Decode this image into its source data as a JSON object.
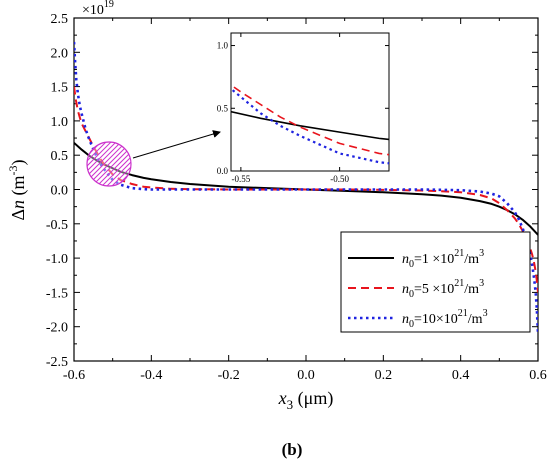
{
  "chart_data": {
    "type": "line",
    "panel_label": "(b)",
    "xlabel": {
      "symbol": "x",
      "sub": "3",
      "unit": " (μm)"
    },
    "ylabel": {
      "symbol": "Δ",
      "italic": "n",
      "unit": " (m",
      "unit_exp": "-3",
      "unit_close": ")"
    },
    "multiplier": {
      "base": "×10",
      "exp": "19"
    },
    "xlim": [
      -0.6,
      0.6
    ],
    "ylim": [
      -2.5,
      2.5
    ],
    "xticks": [
      -0.6,
      -0.4,
      -0.2,
      0.0,
      0.2,
      0.4,
      0.6
    ],
    "xtick_labels": [
      "-0.6",
      "-0.4",
      "-0.2",
      "0.0",
      "0.2",
      "0.4",
      "0.6"
    ],
    "yticks": [
      -2.5,
      -2.0,
      -1.5,
      -1.0,
      -0.5,
      0.0,
      0.5,
      1.0,
      1.5,
      2.0,
      2.5
    ],
    "ytick_labels": [
      "-2.5",
      "-2.0",
      "-1.5",
      "-1.0",
      "-0.5",
      "0.0",
      "0.5",
      "1.0",
      "1.5",
      "2.0",
      "2.5"
    ],
    "legend_position": "right",
    "series": [
      {
        "name": "n0=1 ×10^21/m^3",
        "legend": {
          "n": "n",
          "sub": "0",
          "pre": "=1  ×10",
          "exp": "21",
          "post": "/m",
          "post_exp": "3"
        },
        "color": "#000000",
        "dash": "none",
        "x": [
          -0.6,
          -0.58,
          -0.56,
          -0.54,
          -0.52,
          -0.5,
          -0.48,
          -0.45,
          -0.42,
          -0.4,
          -0.35,
          -0.3,
          -0.25,
          -0.2,
          -0.1,
          0.0,
          0.1,
          0.2,
          0.3,
          0.35,
          0.4,
          0.45,
          0.48,
          0.5,
          0.52,
          0.54,
          0.56,
          0.58,
          0.6
        ],
        "y": [
          0.68,
          0.58,
          0.49,
          0.42,
          0.36,
          0.31,
          0.26,
          0.21,
          0.17,
          0.15,
          0.11,
          0.08,
          0.06,
          0.04,
          0.02,
          0.0,
          -0.02,
          -0.04,
          -0.07,
          -0.09,
          -0.12,
          -0.17,
          -0.21,
          -0.25,
          -0.3,
          -0.36,
          -0.44,
          -0.54,
          -0.66
        ]
      },
      {
        "name": "n0=5 ×10^21/m^3",
        "legend": {
          "n": "n",
          "sub": "0",
          "pre": "=5  ×10",
          "exp": "21",
          "post": "/m",
          "post_exp": "3"
        },
        "color": "#e8141d",
        "dash": "8 5",
        "x": [
          -0.6,
          -0.595,
          -0.59,
          -0.585,
          -0.58,
          -0.57,
          -0.56,
          -0.55,
          -0.54,
          -0.53,
          -0.52,
          -0.5,
          -0.48,
          -0.45,
          -0.42,
          -0.4,
          -0.35,
          -0.3,
          -0.2,
          -0.1,
          0.0,
          0.1,
          0.2,
          0.3,
          0.35,
          0.4,
          0.45,
          0.48,
          0.5,
          0.52,
          0.54,
          0.55,
          0.56,
          0.57,
          0.58,
          0.585,
          0.59,
          0.595,
          0.6
        ],
        "y": [
          1.5,
          1.3,
          1.15,
          1.05,
          0.96,
          0.85,
          0.74,
          0.63,
          0.53,
          0.43,
          0.35,
          0.22,
          0.14,
          0.08,
          0.04,
          0.03,
          0.01,
          0.005,
          0.0,
          0.0,
          0.0,
          0.0,
          -0.005,
          -0.015,
          -0.025,
          -0.04,
          -0.08,
          -0.13,
          -0.2,
          -0.3,
          -0.42,
          -0.5,
          -0.6,
          -0.72,
          -0.86,
          -0.95,
          -1.07,
          -1.23,
          -1.5
        ]
      },
      {
        "name": "n0=10×10^21/m^3",
        "legend": {
          "n": "n",
          "sub": "0",
          "pre": "=10×10",
          "exp": "21",
          "post": "/m",
          "post_exp": "3"
        },
        "color": "#1f23e0",
        "dash": "2.5 3.5",
        "x": [
          -0.6,
          -0.597,
          -0.594,
          -0.59,
          -0.585,
          -0.58,
          -0.575,
          -0.57,
          -0.56,
          -0.55,
          -0.54,
          -0.53,
          -0.52,
          -0.5,
          -0.48,
          -0.45,
          -0.42,
          -0.4,
          -0.35,
          -0.3,
          -0.2,
          -0.1,
          0.0,
          0.1,
          0.2,
          0.3,
          0.35,
          0.4,
          0.45,
          0.48,
          0.5,
          0.52,
          0.54,
          0.55,
          0.56,
          0.57,
          0.575,
          0.58,
          0.585,
          0.59,
          0.594,
          0.597,
          0.6
        ],
        "y": [
          2.15,
          1.85,
          1.6,
          1.4,
          1.22,
          1.1,
          0.99,
          0.88,
          0.72,
          0.59,
          0.46,
          0.36,
          0.28,
          0.14,
          0.07,
          0.02,
          0.005,
          0.0,
          0.0,
          0.0,
          0.0,
          0.0,
          0.0,
          0.0,
          0.0,
          0.0,
          -0.005,
          -0.01,
          -0.03,
          -0.06,
          -0.1,
          -0.2,
          -0.33,
          -0.43,
          -0.56,
          -0.73,
          -0.83,
          -0.95,
          -1.1,
          -1.3,
          -1.5,
          -1.75,
          -2.1
        ]
      }
    ],
    "inset": {
      "xlim": [
        -0.555,
        -0.475
      ],
      "ylim": [
        0.0,
        1.1
      ],
      "xticks": [
        -0.55,
        -0.5
      ],
      "xtick_labels": [
        "-0.55",
        "-0.50"
      ],
      "yticks": [
        0.0,
        0.5,
        1.0
      ],
      "ytick_labels": [
        "0.0",
        "0.5",
        "1.0"
      ],
      "highlight": {
        "center_x": -0.525,
        "center_y": 0.35,
        "color": "#cc33cc"
      }
    }
  }
}
